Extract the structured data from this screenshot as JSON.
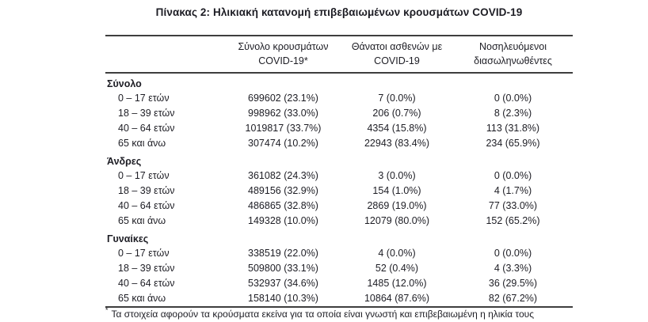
{
  "title": "Πίνακας 2: Ηλικιακή κατανομή επιβεβαιωμένων κρουσμάτων COVID-19",
  "table": {
    "columns": [
      {
        "line1": "",
        "line2": ""
      },
      {
        "line1": "Σύνολο κρουσμάτων",
        "line2": "COVID-19*"
      },
      {
        "line1": "Θάνατοι ασθενών με",
        "line2": "COVID-19"
      },
      {
        "line1": "Νοσηλευόμενοι",
        "line2": "διασωληνωθέντες"
      }
    ],
    "sections": [
      {
        "name": "Σύνολο",
        "rows": [
          {
            "label": "0 – 17 ετών",
            "cases": "699602 (23.1%)",
            "deaths": "7 (0.0%)",
            "intubated": "0 (0.0%)"
          },
          {
            "label": "18 – 39 ετών",
            "cases": "998962 (33.0%)",
            "deaths": "206 (0.7%)",
            "intubated": "8 (2.3%)"
          },
          {
            "label": "40 – 64 ετών",
            "cases": "1019817 (33.7%)",
            "deaths": "4354 (15.8%)",
            "intubated": "113 (31.8%)"
          },
          {
            "label": "65 και άνω",
            "cases": "307474 (10.2%)",
            "deaths": "22943 (83.4%)",
            "intubated": "234 (65.9%)"
          }
        ]
      },
      {
        "name": "Άνδρες",
        "rows": [
          {
            "label": "0 – 17 ετών",
            "cases": "361082 (24.3%)",
            "deaths": "3 (0.0%)",
            "intubated": "0 (0.0%)"
          },
          {
            "label": "18 – 39 ετών",
            "cases": "489156 (32.9%)",
            "deaths": "154 (1.0%)",
            "intubated": "4 (1.7%)"
          },
          {
            "label": "40 – 64 ετών",
            "cases": "486865 (32.8%)",
            "deaths": "2869 (19.0%)",
            "intubated": "77 (33.0%)"
          },
          {
            "label": "65 και άνω",
            "cases": "149328 (10.0%)",
            "deaths": "12079 (80.0%)",
            "intubated": "152 (65.2%)"
          }
        ]
      },
      {
        "name": "Γυναίκες",
        "rows": [
          {
            "label": "0 – 17 ετών",
            "cases": "338519 (22.0%)",
            "deaths": "4 (0.0%)",
            "intubated": "0 (0.0%)"
          },
          {
            "label": "18 – 39 ετών",
            "cases": "509800 (33.1%)",
            "deaths": "52 (0.4%)",
            "intubated": "4 (3.3%)"
          },
          {
            "label": "40 – 64 ετών",
            "cases": "532937 (34.6%)",
            "deaths": "1485 (12.0%)",
            "intubated": "36 (29.5%)"
          },
          {
            "label": "65 και άνω",
            "cases": "158140 (10.3%)",
            "deaths": "10864 (87.6%)",
            "intubated": "82 (67.2%)"
          }
        ]
      }
    ],
    "footnote_marker": "*",
    "footnote": "Τα στοιχεία αφορούν τα κρούσματα εκείνα για τα οποία είναι γνωστή και επιβεβαιωμένη η ηλικία τους"
  },
  "colors": {
    "text": "#1d1d24",
    "rule": "#3e3e3e",
    "background": "#ffffff"
  }
}
